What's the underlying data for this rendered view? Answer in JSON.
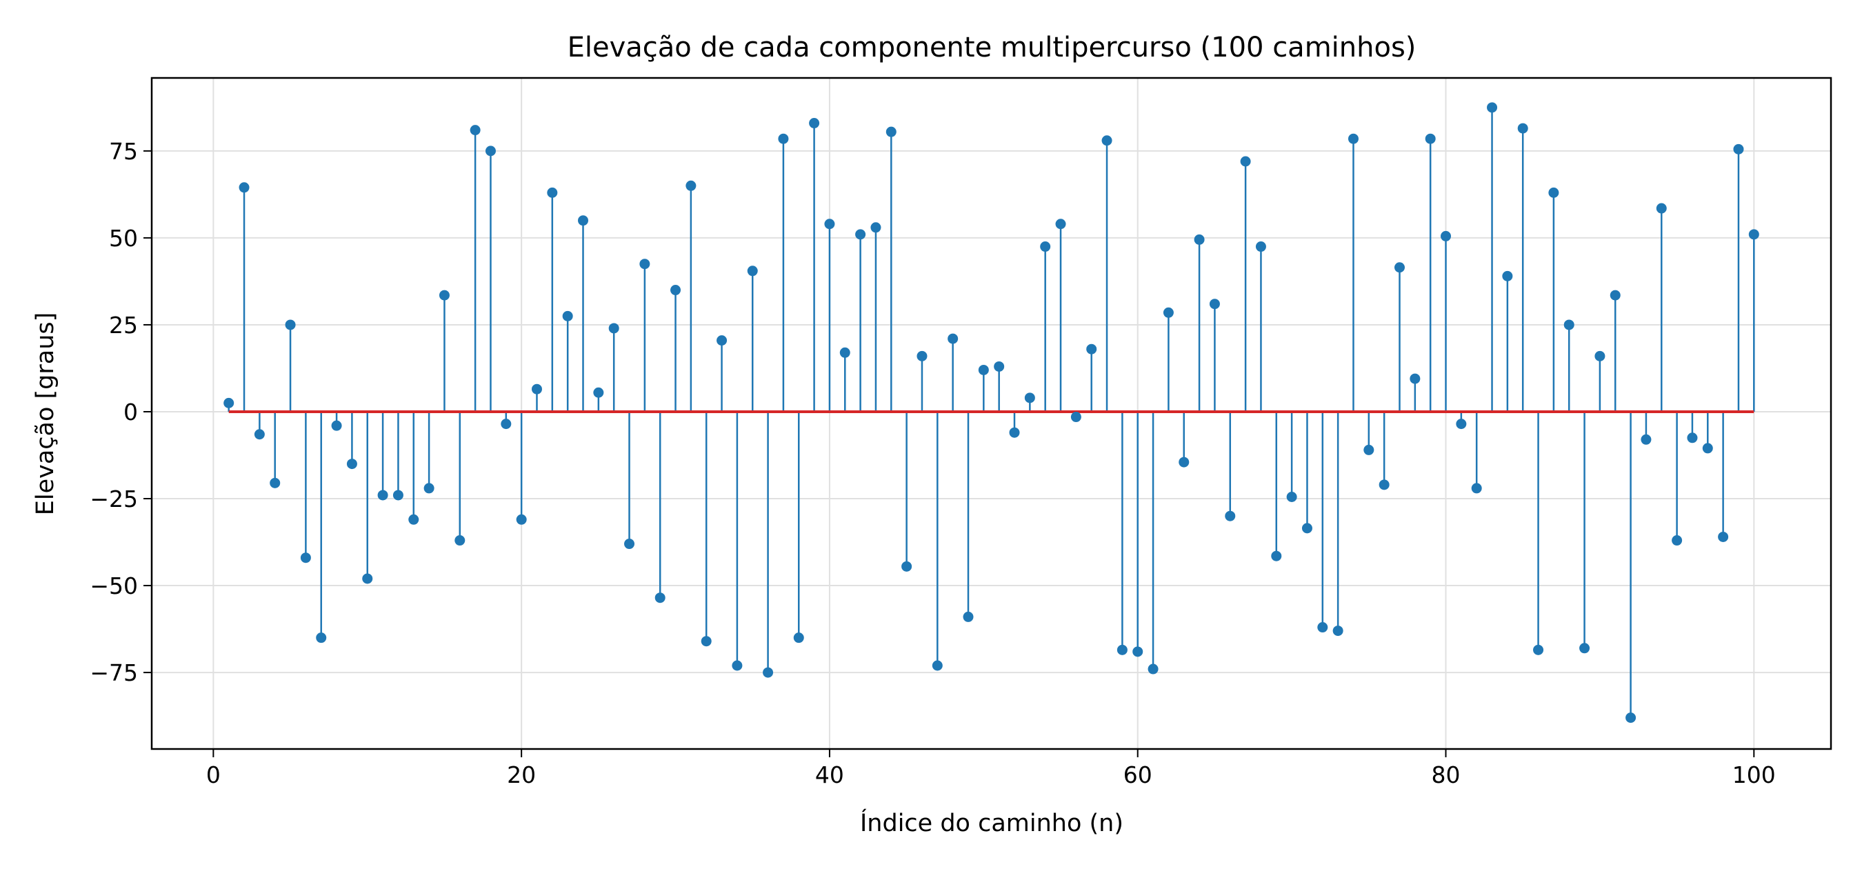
{
  "chart_data": {
    "type": "stem",
    "title": "Elevação de cada componente multipercurso (100 caminhos)",
    "xlabel": "Índice do caminho (n)",
    "ylabel": "Elevação [graus]",
    "xlim": [
      -4,
      105
    ],
    "ylim": [
      -97,
      96
    ],
    "xticks": [
      0,
      20,
      40,
      60,
      80,
      100
    ],
    "yticks": [
      -75,
      -50,
      -25,
      0,
      25,
      50,
      75
    ],
    "xtick_labels": [
      "0",
      "20",
      "40",
      "60",
      "80",
      "100"
    ],
    "ytick_labels": [
      "−75",
      "−50",
      "−25",
      "0",
      "25",
      "50",
      "75"
    ],
    "grid": true,
    "baseline": 0,
    "colors": {
      "stem": "#1f77b4",
      "marker": "#1f77b4",
      "baseline": "#d62728",
      "grid": "#e0e0e0",
      "axes": "#000000"
    },
    "x": [
      1,
      2,
      3,
      4,
      5,
      6,
      7,
      8,
      9,
      10,
      11,
      12,
      13,
      14,
      15,
      16,
      17,
      18,
      19,
      20,
      21,
      22,
      23,
      24,
      25,
      26,
      27,
      28,
      29,
      30,
      31,
      32,
      33,
      34,
      35,
      36,
      37,
      38,
      39,
      40,
      41,
      42,
      43,
      44,
      45,
      46,
      47,
      48,
      49,
      50,
      51,
      52,
      53,
      54,
      55,
      56,
      57,
      58,
      59,
      60,
      61,
      62,
      63,
      64,
      65,
      66,
      67,
      68,
      69,
      70,
      71,
      72,
      73,
      74,
      75,
      76,
      77,
      78,
      79,
      80,
      81,
      82,
      83,
      84,
      85,
      86,
      87,
      88,
      89,
      90,
      91,
      92,
      93,
      94,
      95,
      96,
      97,
      98,
      99,
      100
    ],
    "values": [
      2.5,
      64.5,
      -6.5,
      -20.5,
      25,
      -42,
      -65,
      -4,
      -15,
      -48,
      -24,
      -24,
      -31,
      -22,
      33.5,
      -37,
      81,
      75,
      -3.5,
      -31,
      6.5,
      63,
      27.5,
      55,
      5.5,
      24,
      -38,
      42.5,
      -53.5,
      35,
      65,
      -66,
      20.5,
      -73,
      40.5,
      -75,
      78.5,
      -65,
      83,
      54,
      17,
      51,
      53,
      80.5,
      -44.5,
      16,
      -73,
      21,
      -59,
      12,
      13,
      -6,
      4,
      47.5,
      54,
      -1.5,
      18,
      78,
      -68.5,
      -69,
      -74,
      28.5,
      -14.5,
      49.5,
      31,
      -30,
      72,
      47.5,
      -41.5,
      -24.5,
      -33.5,
      -62,
      -63,
      78.5,
      -11,
      -21,
      41.5,
      9.5,
      78.5,
      50.5,
      -3.5,
      -22,
      87.5,
      39,
      81.5,
      -68.5,
      63,
      25,
      -68,
      16,
      33.5,
      -88,
      -8,
      58.5,
      -37,
      -7.5,
      -10.5,
      -36,
      75.5,
      51
    ]
  }
}
